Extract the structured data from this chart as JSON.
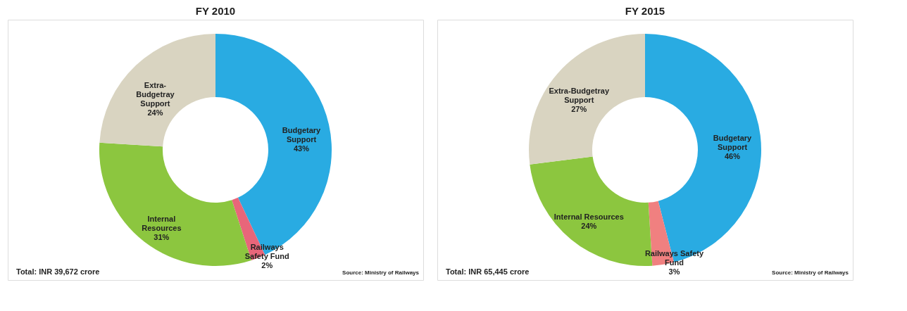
{
  "chart_data": [
    {
      "type": "donut",
      "title": "FY 2010",
      "categories": [
        "Budgetary\nSupport",
        "Railways\nSafety Fund",
        "Internal\nResources",
        "Extra-\nBudgetray\nSupport"
      ],
      "values": [
        43,
        2,
        31,
        24
      ],
      "colors": [
        "#29abe2",
        "#e8667a",
        "#8cc63f",
        "#d9d4c1"
      ],
      "value_labels": [
        "43%",
        "2%",
        "31%",
        "24%"
      ],
      "annotations": [
        "Total: INR 39,672 crore",
        "Source: Ministry of Railways"
      ]
    },
    {
      "type": "donut",
      "title": "FY 2015",
      "categories": [
        "Budgetary\nSupport",
        "Railways Safety\nFund",
        "Internal Resources",
        "Extra-Budgetray\nSupport"
      ],
      "values": [
        46,
        3,
        24,
        27
      ],
      "colors": [
        "#29abe2",
        "#f08080",
        "#8cc63f",
        "#d9d4c1"
      ],
      "value_labels": [
        "46%",
        "3%",
        "24%",
        "27%"
      ],
      "annotations": [
        "Total: INR 65,445 crore",
        "Source: Ministry of Railways"
      ]
    }
  ]
}
